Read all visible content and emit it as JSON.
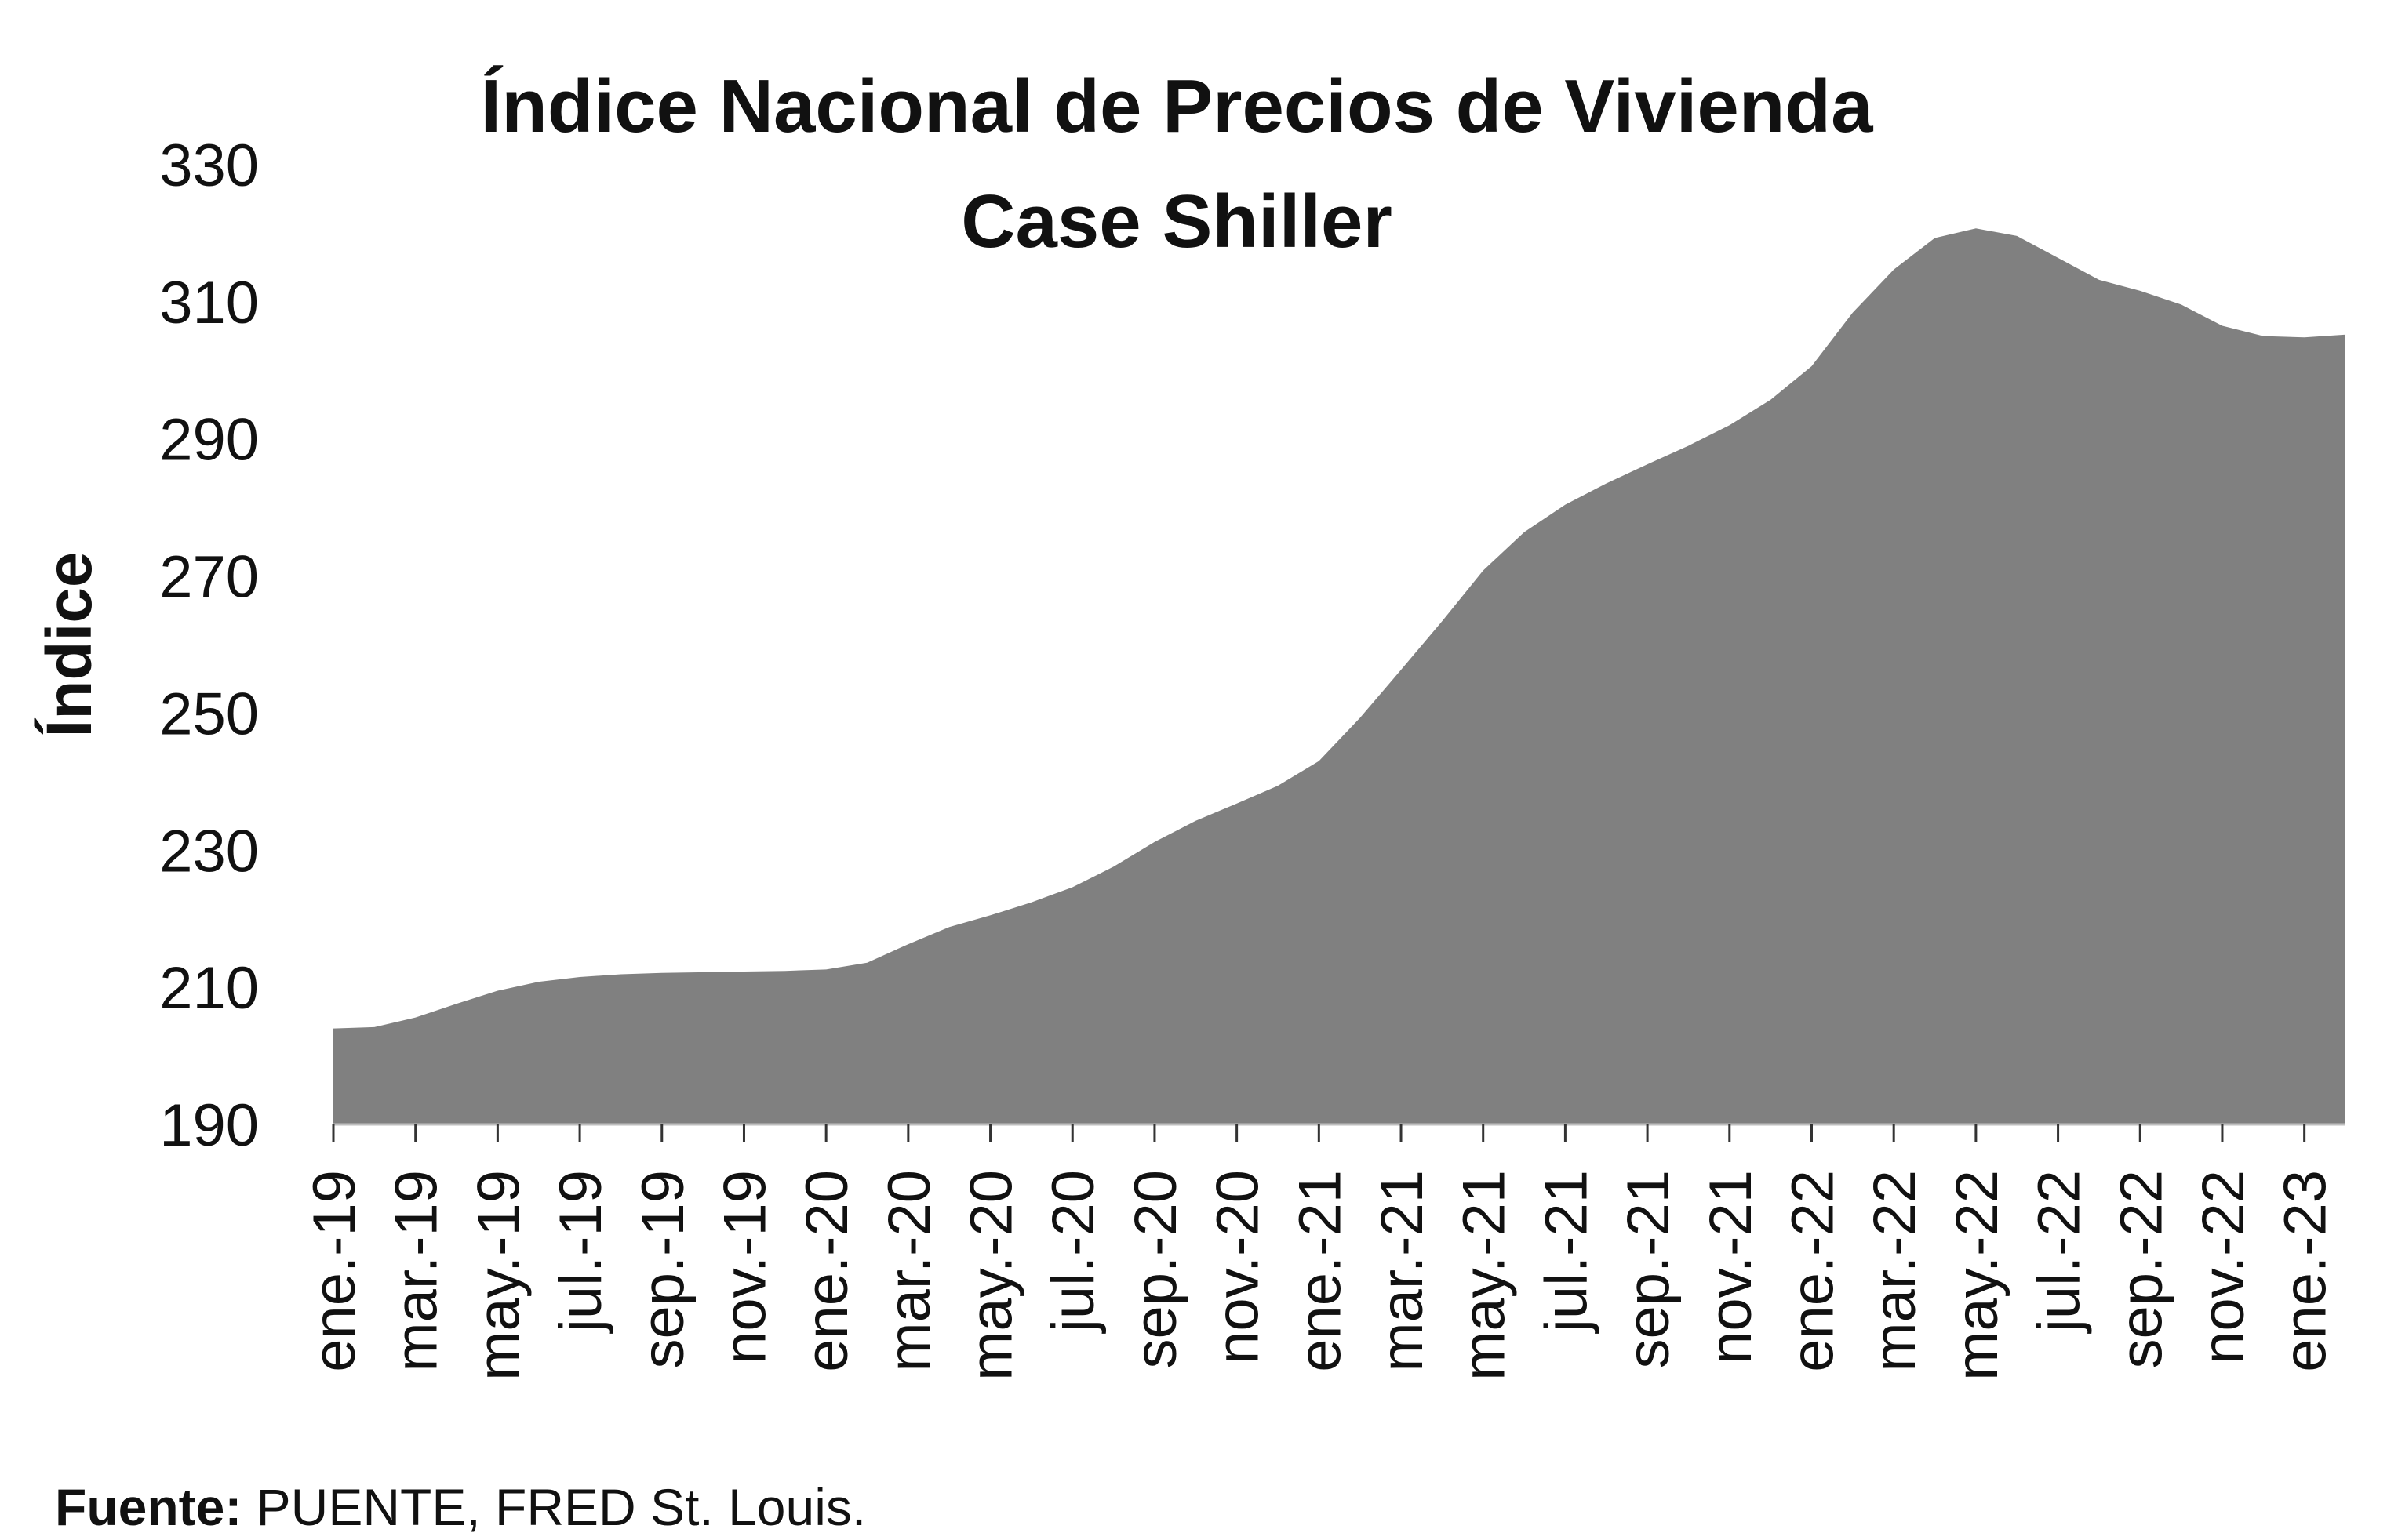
{
  "chart_data": {
    "type": "area",
    "title": "Índice Nacional de Precios de Vivienda",
    "subtitle": "Case Shiller",
    "ylabel": "Índice",
    "xlabel": "",
    "ylim": [
      190,
      330
    ],
    "yticks": [
      190,
      210,
      230,
      250,
      270,
      290,
      310,
      330
    ],
    "grid": false,
    "legend": "none",
    "fill_color": "#808080",
    "x": [
      "ene.-19",
      "feb.-19",
      "mar.-19",
      "abr.-19",
      "may.-19",
      "jun.-19",
      "jul.-19",
      "ago.-19",
      "sep.-19",
      "oct.-19",
      "nov.-19",
      "dic.-19",
      "ene.-20",
      "feb.-20",
      "mar.-20",
      "abr.-20",
      "may.-20",
      "jun.-20",
      "jul.-20",
      "ago.-20",
      "sep.-20",
      "oct.-20",
      "nov.-20",
      "dic.-20",
      "ene.-21",
      "feb.-21",
      "mar.-21",
      "abr.-21",
      "may.-21",
      "jun.-21",
      "jul.-21",
      "ago.-21",
      "sep.-21",
      "oct.-21",
      "nov.-21",
      "dic.-21",
      "ene.-22",
      "feb.-22",
      "mar.-22",
      "abr.-22",
      "may.-22",
      "jun.-22",
      "jul.-22",
      "ago.-22",
      "sep.-22",
      "oct.-22",
      "nov.-22",
      "dic.-22",
      "ene.-23",
      "feb.-23"
    ],
    "xtick_labels": [
      "ene.-19",
      "mar.-19",
      "may.-19",
      "jul.-19",
      "sep.-19",
      "nov.-19",
      "ene.-20",
      "mar.-20",
      "may.-20",
      "jul.-20",
      "sep.-20",
      "nov.-20",
      "ene.-21",
      "mar.-21",
      "may.-21",
      "jul.-21",
      "sep.-21",
      "nov.-21",
      "ene.-22",
      "mar.-22",
      "may.-22",
      "jul.-22",
      "sep.-22",
      "nov.-22",
      "ene.-23"
    ],
    "series": [
      {
        "values": [
          204.0,
          204.2,
          205.6,
          207.6,
          209.5,
          210.8,
          211.5,
          211.9,
          212.1,
          212.2,
          212.3,
          212.4,
          212.6,
          213.6,
          216.3,
          218.8,
          220.5,
          222.4,
          224.6,
          227.6,
          231.2,
          234.3,
          236.8,
          239.4,
          243.0,
          249.3,
          256.3,
          263.4,
          270.8,
          276.4,
          280.4,
          283.5,
          286.3,
          289.0,
          292.0,
          295.7,
          300.6,
          308.4,
          314.7,
          319.3,
          320.7,
          319.6,
          316.4,
          313.2,
          311.6,
          309.6,
          306.5,
          305.0,
          304.8,
          305.2
        ]
      }
    ]
  },
  "source": {
    "label": "Fuente:",
    "text": " PUENTE, FRED St. Louis."
  }
}
